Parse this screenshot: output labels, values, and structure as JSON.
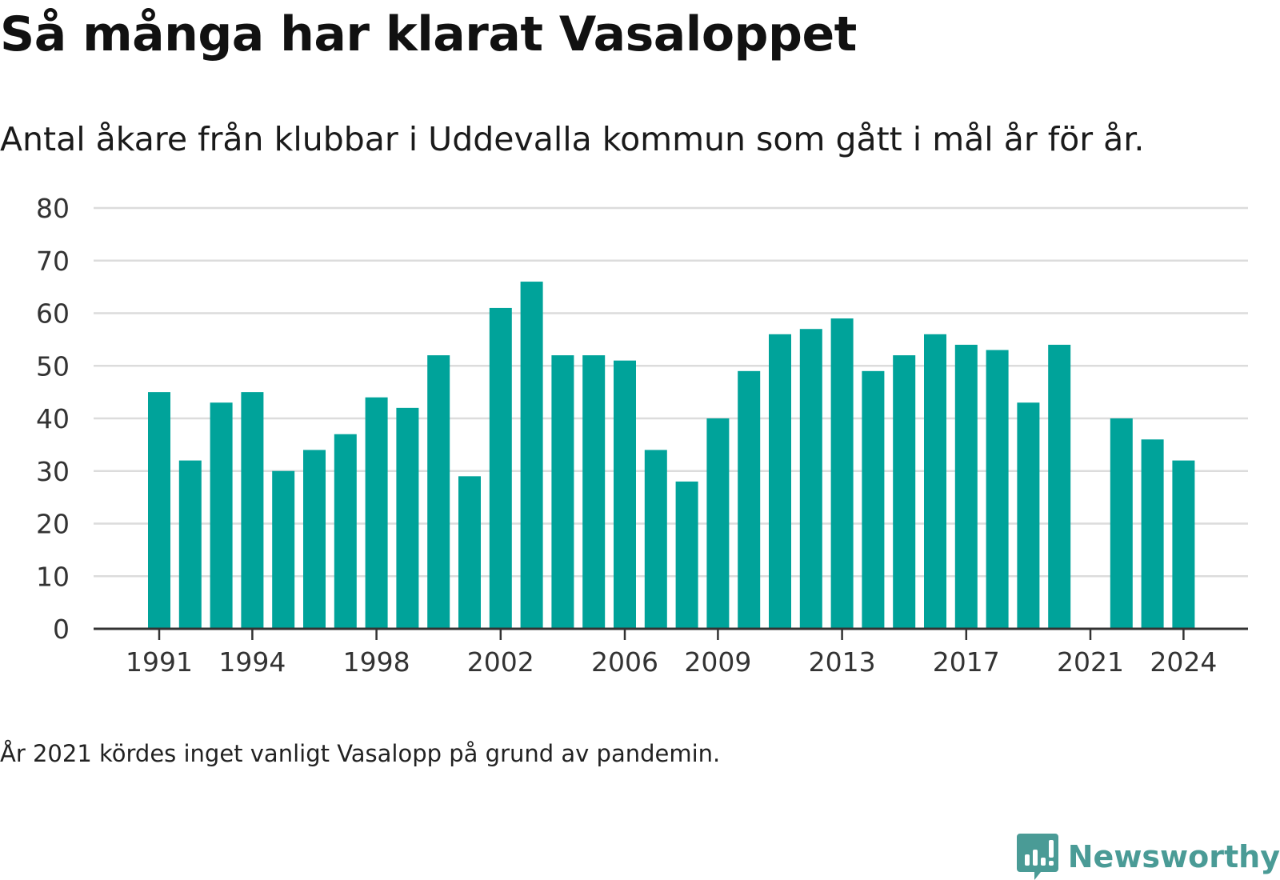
{
  "title": "Så många har klarat Vasaloppet",
  "subtitle": "Antal åkare från klubbar i Uddevalla kommun som gått i mål år för år.",
  "footnote": "År 2021 kördes inget vanligt Vasalopp på grund av pandemin.",
  "brand": {
    "name": "Newsworthy",
    "color": "#4a9b96",
    "icon": "bar-chart-logo-icon"
  },
  "colors": {
    "bar": "#00a39a",
    "grid": "#dcdcdc",
    "axis": "#333333",
    "tick_text": "#333333"
  },
  "chart_data": {
    "type": "bar",
    "categories": [
      1991,
      1992,
      1993,
      1994,
      1995,
      1996,
      1997,
      1998,
      1999,
      2000,
      2001,
      2002,
      2003,
      2004,
      2005,
      2006,
      2007,
      2008,
      2009,
      2010,
      2011,
      2012,
      2013,
      2014,
      2015,
      2016,
      2017,
      2018,
      2019,
      2020,
      2021,
      2022,
      2023,
      2024
    ],
    "values": [
      45,
      32,
      43,
      45,
      30,
      34,
      37,
      44,
      42,
      52,
      29,
      61,
      66,
      52,
      52,
      51,
      34,
      28,
      40,
      49,
      56,
      57,
      59,
      49,
      52,
      56,
      54,
      53,
      43,
      54,
      null,
      40,
      36,
      32
    ],
    "x_tick_labels": [
      "1991",
      "1994",
      "1998",
      "2002",
      "2006",
      "2009",
      "2013",
      "2017",
      "2021",
      "2024"
    ],
    "y_ticks": [
      0,
      10,
      20,
      30,
      40,
      50,
      60,
      70,
      80
    ],
    "ylim": [
      0,
      80
    ],
    "grid": "horizontal",
    "xlabel": "",
    "ylabel": ""
  }
}
